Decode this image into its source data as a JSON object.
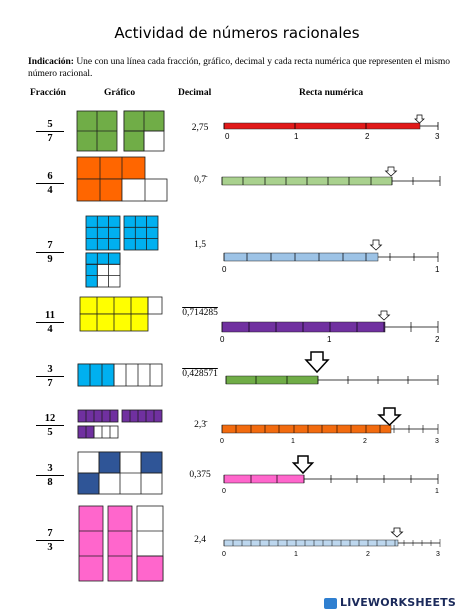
{
  "title": "Actividad de números racionales",
  "instructions": {
    "label": "Indicación:",
    "text": " Une con una línea cada fracción, gráfico, decimal y cada recta numérica que representen el mismo número racional."
  },
  "headers": {
    "fraction": "Fracción",
    "graphic": "Gráfico",
    "decimal": "Decimal",
    "number_line": "Recta numérica"
  },
  "rows": [
    {
      "num": "5",
      "den": "7",
      "decimal": "2,75"
    },
    {
      "num": "6",
      "den": "4",
      "decimal": "0,7̄"
    },
    {
      "num": "7",
      "den": "9",
      "decimal": "1,5"
    },
    {
      "num": "11",
      "den": "4",
      "decimal": "0,714285"
    },
    {
      "num": "3",
      "den": "7",
      "decimal": "0,428571"
    },
    {
      "num": "12",
      "den": "5",
      "decimal": "2,3̄"
    },
    {
      "num": "3",
      "den": "8",
      "decimal": "0,375"
    },
    {
      "num": "7",
      "den": "3",
      "decimal": "2,4"
    }
  ],
  "number_lines": [
    {
      "color": "#e11919",
      "labels": [
        "0",
        "1",
        "2",
        "3"
      ],
      "fill": 0.97
    },
    {
      "color": "#a9d18e",
      "labels": [],
      "fill": 0.78
    },
    {
      "color": "#9dc3e6",
      "labels": [
        "0",
        "1"
      ],
      "fill": 0.72
    },
    {
      "color": "#7030a0",
      "labels": [
        "0",
        "1",
        "2"
      ],
      "fill": 0.76
    },
    {
      "color": "#70ad47",
      "labels": [],
      "fill": 0.44
    },
    {
      "color": "#f26b0f",
      "labels": [
        "0",
        "1",
        "2",
        "3"
      ],
      "fill": 0.78
    },
    {
      "color": "#ff66cc",
      "labels": [
        "0",
        "1"
      ],
      "fill": 0.38
    },
    {
      "color": "#bdd7ee",
      "labels": [
        "0",
        "1",
        "2",
        "3"
      ],
      "fill": 0.81
    }
  ],
  "footer": "LIVEWORKSHEETS"
}
